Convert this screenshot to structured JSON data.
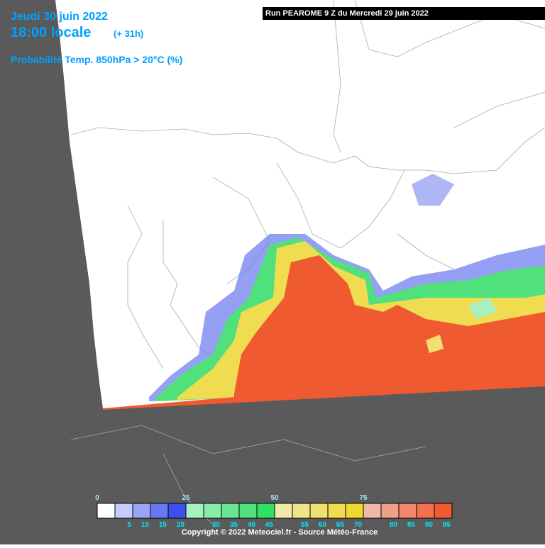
{
  "header": {
    "date": "Jeudi 30 juin 2022",
    "time": "18:00 locale",
    "lead": "(+ 31h)",
    "parameter": "Probabilité Temp. 850hPa > 20°C (%)",
    "run": "Run PEAROME 9 Z du Mercredi 29 juin 2022"
  },
  "legend": {
    "ticks": [
      0,
      5,
      10,
      15,
      20,
      25,
      30,
      35,
      40,
      45,
      50,
      55,
      60,
      65,
      70,
      75,
      80,
      85,
      90,
      95
    ],
    "colors": [
      "#ffffff",
      "#c8ccf8",
      "#9aa4f4",
      "#6878f0",
      "#3c50f0",
      "#a8f0c0",
      "#88ecaa",
      "#68e494",
      "#50e07c",
      "#30e060",
      "#f0eaa8",
      "#f0e488",
      "#f0e070",
      "#f0dc50",
      "#f0d830",
      "#f0b8a8",
      "#f0a088",
      "#f08870",
      "#f07050",
      "#f05a30"
    ]
  },
  "footer": {
    "copyright": "Copyright © 2022 Meteociel.fr - Source Météo-France"
  }
}
